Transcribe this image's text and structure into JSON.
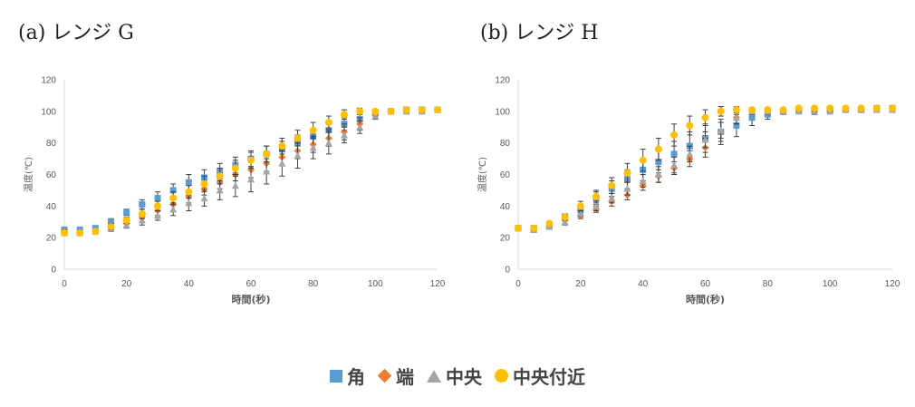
{
  "colors": {
    "corner": "#5b9bd5",
    "edge": "#ed7d31",
    "center": "#a5a5a5",
    "near_center": "#ffc000"
  },
  "legend": [
    {
      "key": "corner",
      "label": "角",
      "symbol": "square"
    },
    {
      "key": "edge",
      "label": "端",
      "symbol": "diamond"
    },
    {
      "key": "center",
      "label": "中央",
      "symbol": "triangle"
    },
    {
      "key": "near_center",
      "label": "中央付近",
      "symbol": "circle"
    }
  ],
  "chart_data": [
    {
      "type": "scatter",
      "title": "(a) レンジ G",
      "xlabel": "時間(秒)",
      "ylabel": "温度(℃)",
      "xlim": [
        0,
        120
      ],
      "ylim": [
        0,
        120
      ],
      "xticks": [
        0,
        20,
        40,
        60,
        80,
        100,
        120
      ],
      "yticks": [
        0,
        20,
        40,
        60,
        80,
        100,
        120
      ],
      "error_bars": true,
      "series": [
        {
          "key": "corner",
          "x": [
            0,
            5,
            10,
            15,
            20,
            25,
            30,
            35,
            40,
            45,
            50,
            55,
            60,
            65,
            70,
            75,
            80,
            85,
            90,
            95,
            100,
            105,
            110,
            115,
            120
          ],
          "y": [
            25,
            25,
            26,
            30,
            36,
            41,
            45,
            50,
            55,
            58,
            62,
            66,
            70,
            73,
            76,
            80,
            84,
            88,
            92,
            95,
            99,
            100,
            101,
            101,
            101
          ],
          "err": [
            1,
            1,
            1,
            2,
            2,
            3,
            4,
            4,
            5,
            5,
            5,
            5,
            5,
            5,
            5,
            5,
            5,
            5,
            4,
            3,
            2,
            1,
            1,
            1,
            1
          ]
        },
        {
          "key": "edge",
          "x": [
            0,
            5,
            10,
            15,
            20,
            25,
            30,
            35,
            40,
            45,
            50,
            55,
            60,
            65,
            70,
            75,
            80,
            85,
            90,
            95,
            100,
            105,
            110,
            115,
            120
          ],
          "y": [
            24,
            23,
            24,
            26,
            29,
            33,
            37,
            41,
            46,
            51,
            55,
            60,
            63,
            67,
            71,
            75,
            79,
            83,
            87,
            92,
            98,
            100,
            101,
            101,
            101
          ],
          "err": [
            1,
            1,
            1,
            1,
            2,
            3,
            3,
            4,
            4,
            4,
            4,
            4,
            5,
            5,
            5,
            5,
            5,
            5,
            5,
            4,
            3,
            1,
            1,
            1,
            1
          ]
        },
        {
          "key": "center",
          "x": [
            0,
            5,
            10,
            15,
            20,
            25,
            30,
            35,
            40,
            45,
            50,
            55,
            60,
            65,
            70,
            75,
            80,
            85,
            90,
            95,
            100,
            105,
            110,
            115,
            120
          ],
          "y": [
            23,
            23,
            24,
            26,
            28,
            31,
            34,
            38,
            42,
            45,
            50,
            53,
            57,
            62,
            67,
            72,
            77,
            80,
            85,
            90,
            97,
            100,
            100,
            100,
            101
          ],
          "err": [
            1,
            1,
            1,
            2,
            2,
            3,
            3,
            4,
            5,
            5,
            6,
            7,
            8,
            8,
            8,
            8,
            7,
            7,
            5,
            4,
            2,
            1,
            1,
            1,
            1
          ]
        },
        {
          "key": "near_center",
          "x": [
            0,
            5,
            10,
            15,
            20,
            25,
            30,
            35,
            40,
            45,
            50,
            55,
            60,
            65,
            70,
            75,
            80,
            85,
            90,
            95,
            100,
            105,
            110,
            115,
            120
          ],
          "y": [
            23,
            23,
            24,
            27,
            31,
            35,
            40,
            45,
            49,
            54,
            59,
            64,
            69,
            73,
            78,
            83,
            88,
            93,
            98,
            100,
            100,
            100,
            101,
            101,
            101
          ],
          "err": [
            1,
            1,
            1,
            2,
            2,
            3,
            3,
            4,
            4,
            5,
            5,
            5,
            5,
            5,
            5,
            5,
            5,
            4,
            3,
            2,
            1,
            1,
            1,
            1,
            1
          ]
        }
      ]
    },
    {
      "type": "scatter",
      "title": "(b) レンジ H",
      "xlabel": "時間(秒)",
      "ylabel": "温度(℃)",
      "xlim": [
        0,
        120
      ],
      "ylim": [
        0,
        120
      ],
      "xticks": [
        0,
        20,
        40,
        60,
        80,
        100,
        120
      ],
      "yticks": [
        0,
        20,
        40,
        60,
        80,
        100,
        120
      ],
      "error_bars": true,
      "series": [
        {
          "key": "corner",
          "x": [
            0,
            5,
            10,
            15,
            20,
            25,
            30,
            35,
            40,
            45,
            50,
            55,
            60,
            65,
            70,
            75,
            80,
            85,
            90,
            95,
            100,
            105,
            110,
            115,
            120
          ],
          "y": [
            26,
            26,
            28,
            33,
            38,
            45,
            51,
            57,
            63,
            68,
            73,
            78,
            83,
            87,
            91,
            96,
            98,
            100,
            101,
            101,
            101,
            101,
            101,
            102,
            102
          ],
          "err": [
            1,
            1,
            2,
            2,
            3,
            4,
            5,
            6,
            7,
            7,
            8,
            9,
            9,
            8,
            7,
            5,
            3,
            2,
            1,
            1,
            1,
            1,
            1,
            1,
            1
          ]
        },
        {
          "key": "edge",
          "x": [
            0,
            5,
            10,
            15,
            20,
            25,
            30,
            35,
            40,
            45,
            50,
            55,
            60,
            65,
            70,
            75,
            80,
            85,
            90,
            95,
            100,
            105,
            110,
            115,
            120
          ],
          "y": [
            26,
            25,
            27,
            31,
            34,
            38,
            43,
            47,
            53,
            59,
            64,
            70,
            77,
            87,
            96,
            100,
            101,
            101,
            101,
            101,
            101,
            101,
            101,
            102,
            102
          ],
          "err": [
            1,
            1,
            1,
            2,
            2,
            2,
            3,
            3,
            3,
            4,
            4,
            5,
            6,
            6,
            4,
            2,
            1,
            1,
            1,
            1,
            1,
            1,
            1,
            1,
            1
          ]
        },
        {
          "key": "center",
          "x": [
            0,
            5,
            10,
            15,
            20,
            25,
            30,
            35,
            40,
            45,
            50,
            55,
            60,
            65,
            70,
            75,
            80,
            85,
            90,
            95,
            100,
            105,
            110,
            115,
            120
          ],
          "y": [
            26,
            25,
            27,
            30,
            35,
            40,
            45,
            51,
            56,
            60,
            66,
            73,
            82,
            88,
            96,
            100,
            100,
            100,
            100,
            100,
            100,
            101,
            101,
            101,
            101
          ],
          "err": [
            1,
            1,
            1,
            2,
            2,
            3,
            3,
            4,
            4,
            5,
            5,
            5,
            5,
            5,
            4,
            2,
            2,
            1,
            1,
            2,
            1,
            1,
            1,
            1,
            1
          ]
        },
        {
          "key": "near_center",
          "x": [
            0,
            5,
            10,
            15,
            20,
            25,
            30,
            35,
            40,
            45,
            50,
            55,
            60,
            65,
            70,
            75,
            80,
            85,
            90,
            95,
            100,
            105,
            110,
            115,
            120
          ],
          "y": [
            26,
            26,
            29,
            33,
            40,
            46,
            53,
            61,
            69,
            76,
            85,
            91,
            96,
            100,
            101,
            101,
            101,
            101,
            102,
            102,
            102,
            102,
            102,
            102,
            102
          ],
          "err": [
            1,
            1,
            1,
            2,
            3,
            4,
            5,
            6,
            7,
            7,
            7,
            6,
            5,
            3,
            2,
            1,
            1,
            1,
            1,
            1,
            1,
            1,
            1,
            1,
            1
          ]
        }
      ]
    }
  ]
}
